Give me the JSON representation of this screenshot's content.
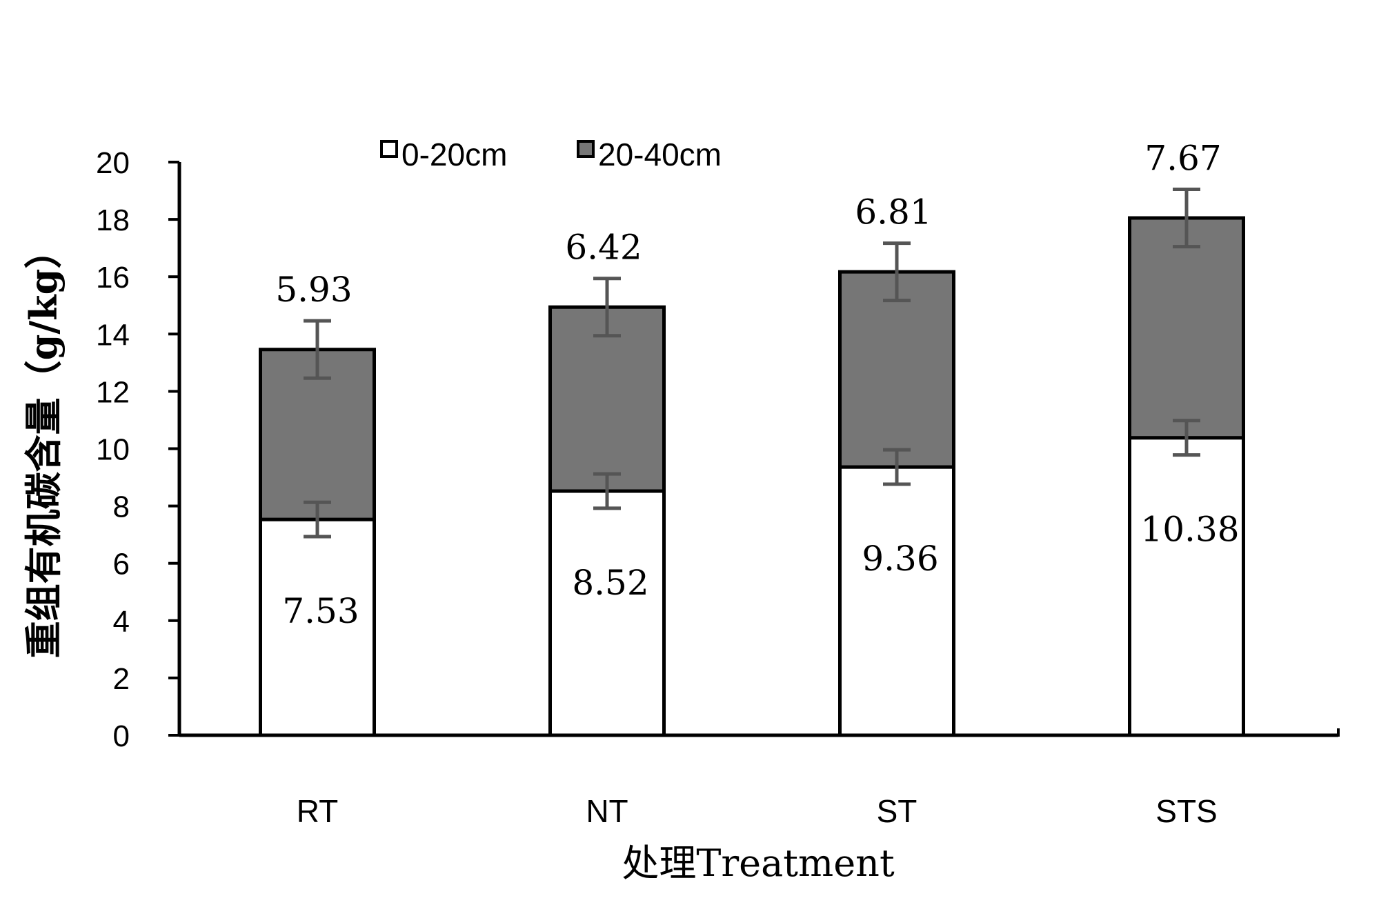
{
  "chart_data": {
    "type": "bar",
    "stacked": true,
    "title": "",
    "xlabel": "处理Treatment",
    "ylabel": "重组有机碳含量（g/kg）",
    "ylim": [
      0,
      20
    ],
    "yticks": [
      "0",
      "2",
      "4",
      "6",
      "8",
      "10",
      "12",
      "14",
      "16",
      "18",
      "20"
    ],
    "categories": [
      "RT",
      "NT",
      "ST",
      "STS"
    ],
    "series": [
      {
        "name": "0-20cm",
        "color": "#ffffff",
        "values": [
          7.53,
          8.52,
          9.36,
          10.38
        ],
        "labels": [
          "7.53",
          "8.52",
          "9.36",
          "10.38"
        ],
        "errors": [
          0.6,
          0.6,
          0.6,
          0.6
        ]
      },
      {
        "name": "20-40cm",
        "color": "#767676",
        "values": [
          5.93,
          6.42,
          6.81,
          7.67
        ],
        "labels": [
          "5.93",
          "6.42",
          "6.81",
          "7.67"
        ],
        "errors": [
          1.0,
          1.0,
          1.0,
          1.0
        ]
      }
    ],
    "legend_position": "top"
  }
}
